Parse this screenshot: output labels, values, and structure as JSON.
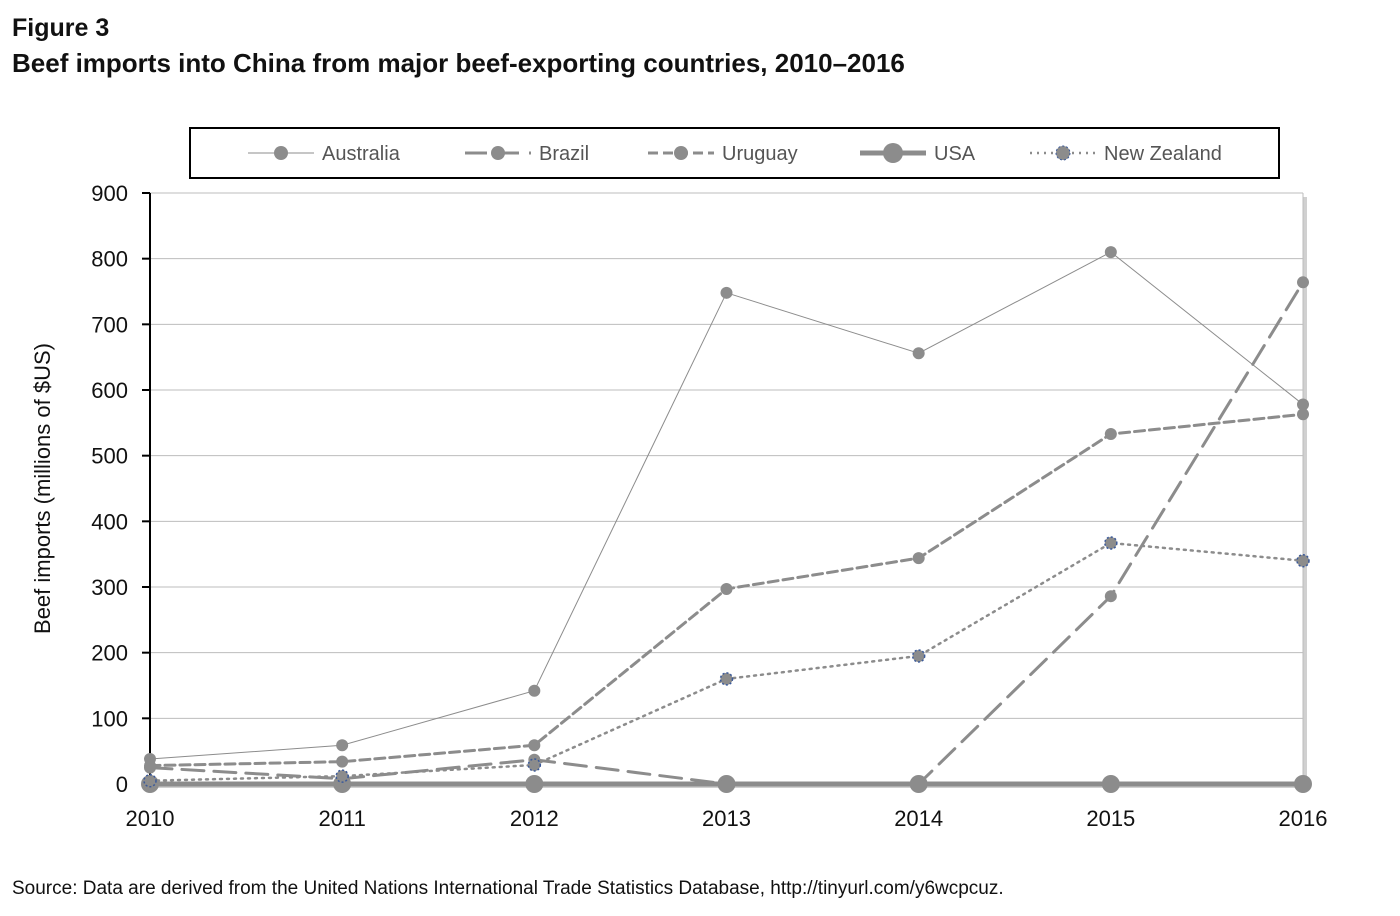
{
  "figure_label": "Figure 3",
  "title": "Beef imports into China from major beef-exporting countries, 2010–2016",
  "source": "Source: Data are derived from the United Nations International Trade Statistics Database, http://tinyurl.com/y6wcpcuz.",
  "chart_data": {
    "type": "line",
    "title": "Beef imports into China from major beef-exporting countries, 2010–2016",
    "xlabel": "",
    "ylabel": "Beef imports (millions of $US)",
    "x": [
      2010,
      2011,
      2012,
      2013,
      2014,
      2015,
      2016
    ],
    "ylim": [
      0,
      900
    ],
    "yticks": [
      0,
      100,
      200,
      300,
      400,
      500,
      600,
      700,
      800,
      900
    ],
    "grid": true,
    "legend": "top",
    "series": [
      {
        "name": "Australia",
        "values": [
          38,
          59,
          142,
          748,
          656,
          810,
          578
        ],
        "color": "#8c8c8c",
        "style": "solid-thin"
      },
      {
        "name": "Brazil",
        "values": [
          25,
          8,
          37,
          0,
          0,
          286,
          764
        ],
        "color": "#8c8c8c",
        "style": "long-dash"
      },
      {
        "name": "Uruguay",
        "values": [
          28,
          34,
          59,
          297,
          344,
          533,
          563
        ],
        "color": "#8c8c8c",
        "style": "dash"
      },
      {
        "name": "USA",
        "values": [
          0,
          0,
          0,
          0,
          0,
          0,
          0
        ],
        "color": "#8c8c8c",
        "style": "solid-thick"
      },
      {
        "name": "New Zealand",
        "values": [
          5,
          12,
          29,
          160,
          195,
          367,
          340
        ],
        "color": "#8c8c8c",
        "marker_outline": "#3b5a9a",
        "style": "dotted"
      }
    ]
  }
}
